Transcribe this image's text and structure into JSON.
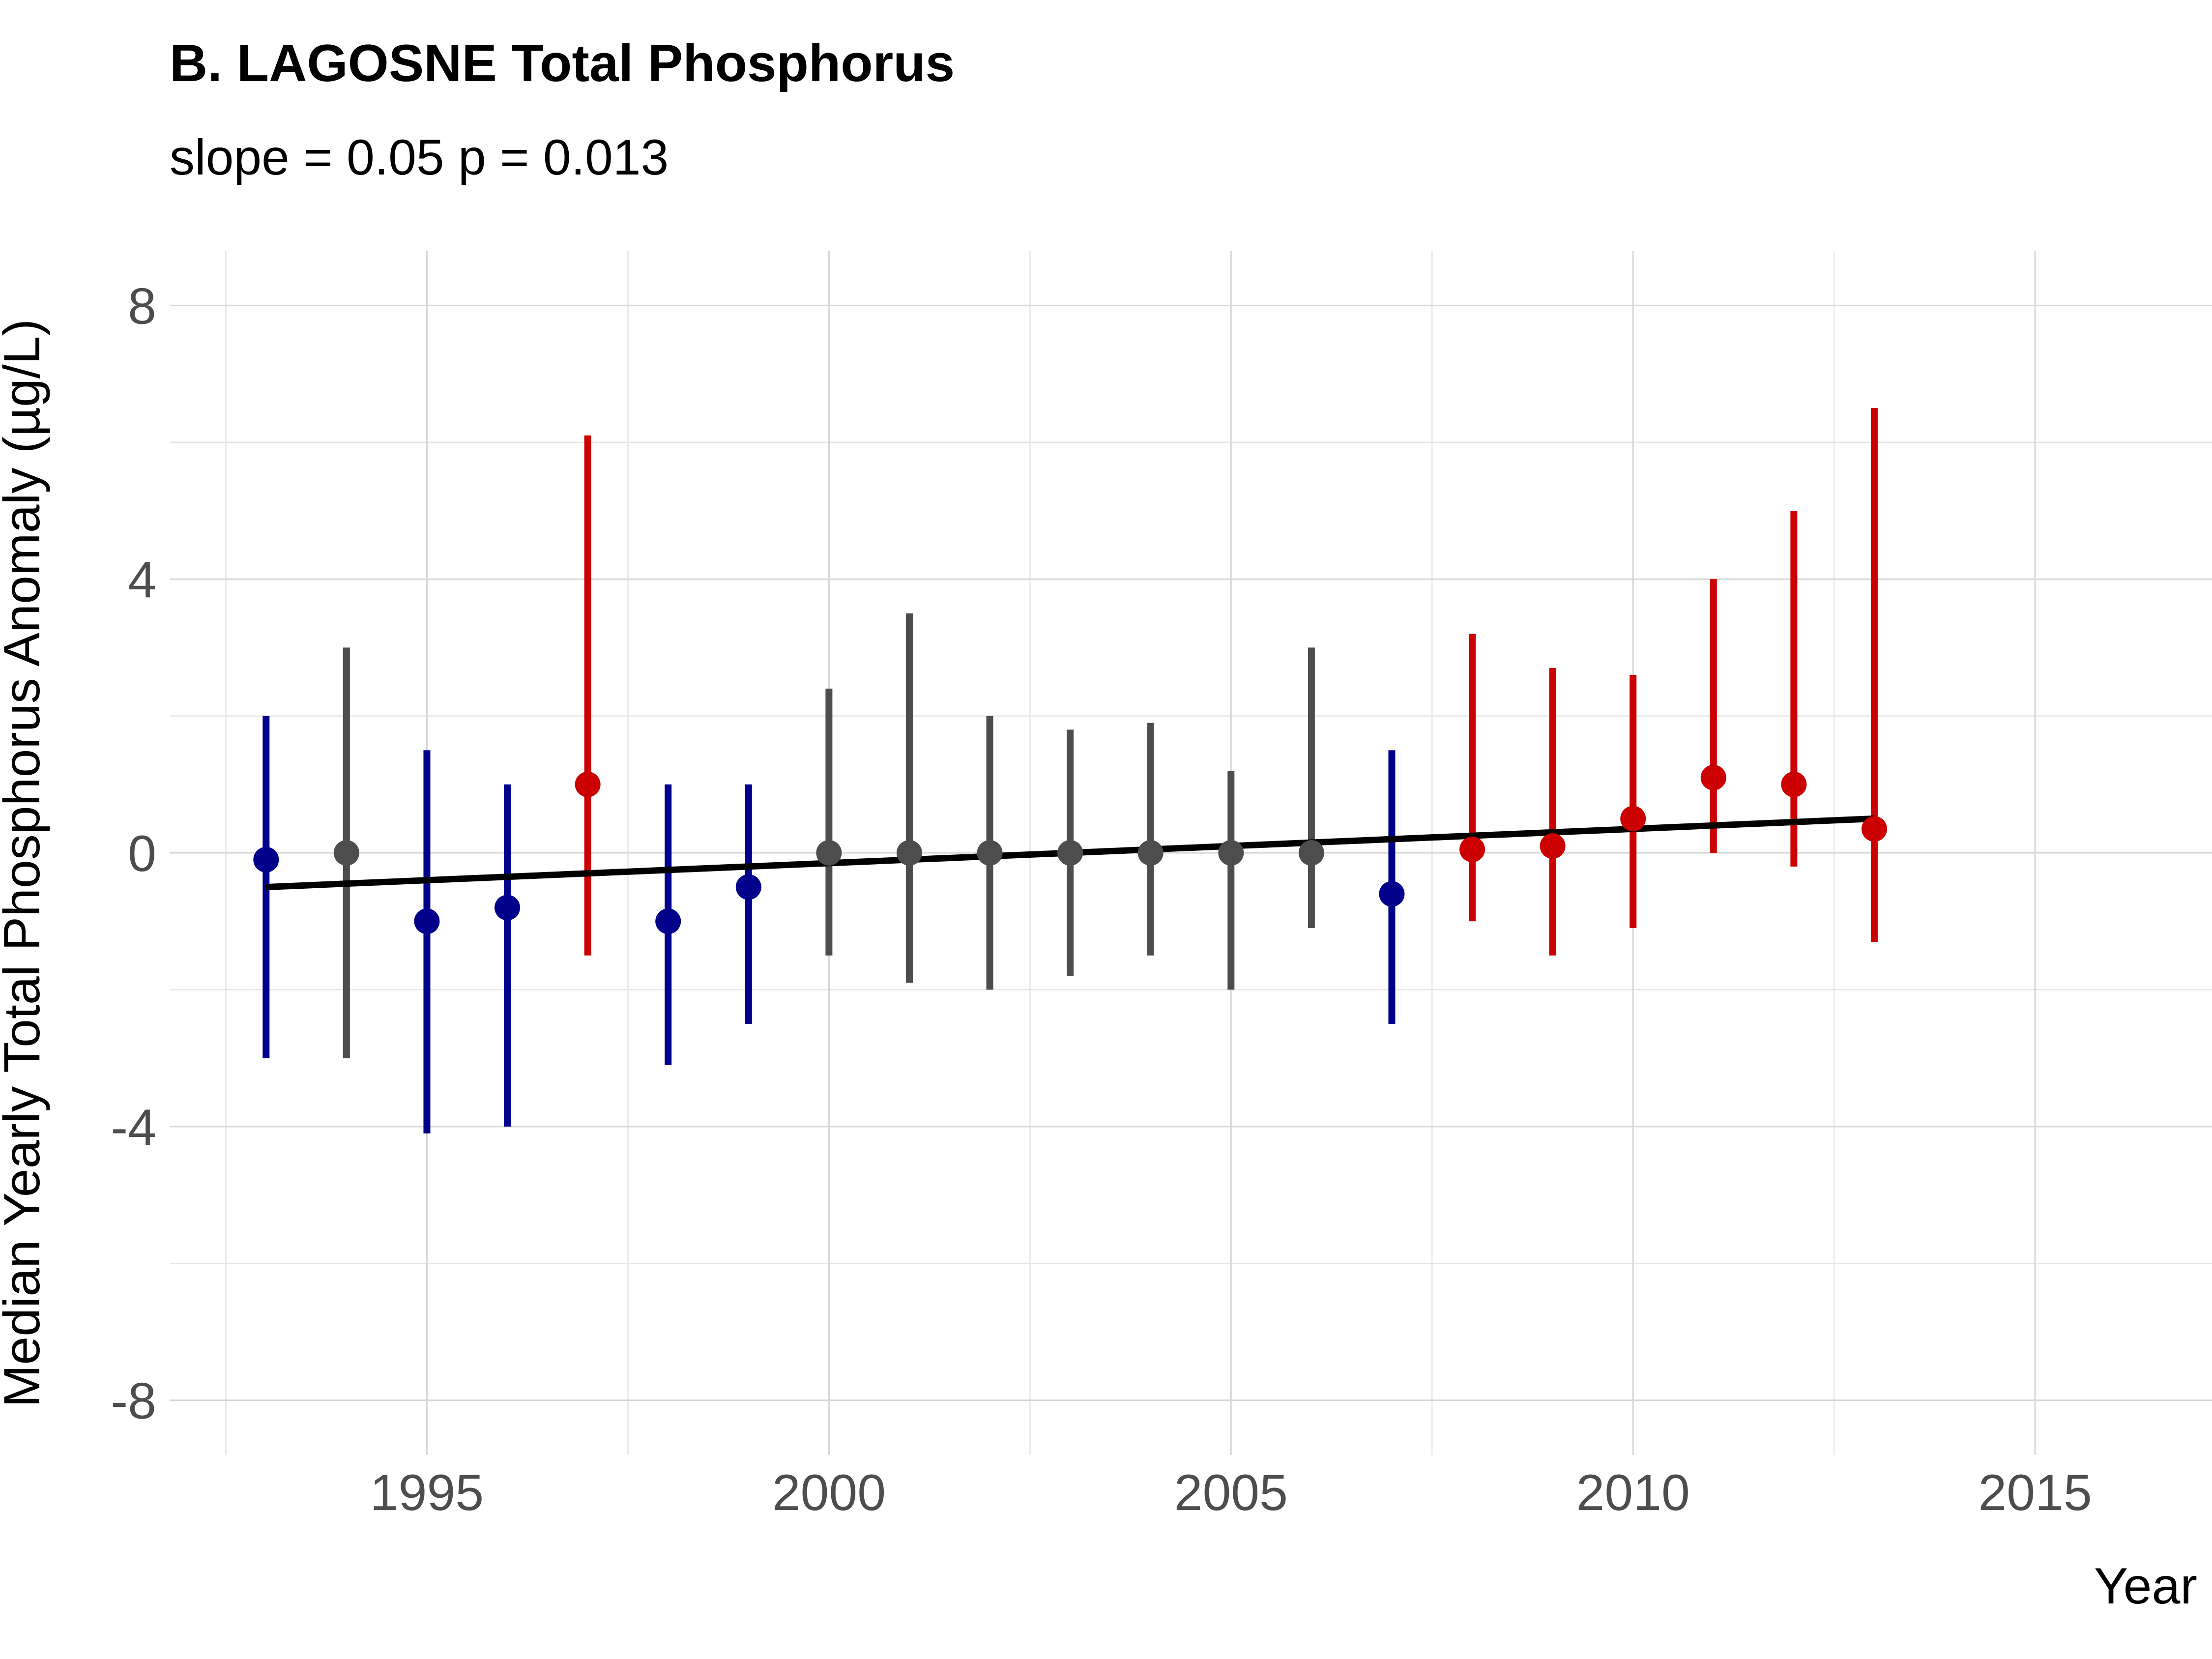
{
  "chart_data": {
    "type": "scatter",
    "title": "B. LAGOSNE Total Phosphorus",
    "subtitle": "slope = 0.05 p = 0.013",
    "xlabel": "Year",
    "ylabel": "Median Yearly Total Phosphorus Anomaly (µg/L)",
    "xlim": [
      1991.8,
      2017.2
    ],
    "ylim": [
      -8.8,
      8.8
    ],
    "x_ticks": [
      1995,
      2000,
      2005,
      2010,
      2015
    ],
    "x_tick_labels": [
      "1995",
      "2000",
      "2005",
      "2010",
      "2015"
    ],
    "y_ticks": [
      -8,
      -4,
      0,
      4,
      8
    ],
    "y_tick_labels": [
      "-8",
      "-4",
      "0",
      "4",
      "8"
    ],
    "grid": true,
    "colors": {
      "below": "#00008b",
      "neutral": "#4d4d4d",
      "above": "#cc0000",
      "trend": "#000000"
    },
    "points": [
      {
        "year": 1993,
        "median": -0.1,
        "low": -3.0,
        "high": 2.0,
        "group": "below"
      },
      {
        "year": 1994,
        "median": 0.0,
        "low": -3.0,
        "high": 3.0,
        "group": "neutral"
      },
      {
        "year": 1995,
        "median": -1.0,
        "low": -4.1,
        "high": 1.5,
        "group": "below"
      },
      {
        "year": 1996,
        "median": -0.8,
        "low": -4.0,
        "high": 1.0,
        "group": "below"
      },
      {
        "year": 1997,
        "median": 1.0,
        "low": -1.5,
        "high": 6.1,
        "group": "above"
      },
      {
        "year": 1998,
        "median": -1.0,
        "low": -3.1,
        "high": 1.0,
        "group": "below"
      },
      {
        "year": 1999,
        "median": -0.5,
        "low": -2.5,
        "high": 1.0,
        "group": "below"
      },
      {
        "year": 2000,
        "median": 0.0,
        "low": -1.5,
        "high": 2.4,
        "group": "neutral"
      },
      {
        "year": 2001,
        "median": 0.0,
        "low": -1.9,
        "high": 3.5,
        "group": "neutral"
      },
      {
        "year": 2002,
        "median": 0.0,
        "low": -2.0,
        "high": 2.0,
        "group": "neutral"
      },
      {
        "year": 2003,
        "median": 0.0,
        "low": -1.8,
        "high": 1.8,
        "group": "neutral"
      },
      {
        "year": 2004,
        "median": 0.0,
        "low": -1.5,
        "high": 1.9,
        "group": "neutral"
      },
      {
        "year": 2005,
        "median": 0.0,
        "low": -2.0,
        "high": 1.2,
        "group": "neutral"
      },
      {
        "year": 2006,
        "median": 0.0,
        "low": -1.1,
        "high": 3.0,
        "group": "neutral"
      },
      {
        "year": 2007,
        "median": -0.6,
        "low": -2.5,
        "high": 1.5,
        "group": "below"
      },
      {
        "year": 2008,
        "median": 0.05,
        "low": -1.0,
        "high": 3.2,
        "group": "above"
      },
      {
        "year": 2009,
        "median": 0.1,
        "low": -1.5,
        "high": 2.7,
        "group": "above"
      },
      {
        "year": 2010,
        "median": 0.5,
        "low": -1.1,
        "high": 2.6,
        "group": "above"
      },
      {
        "year": 2011,
        "median": 1.1,
        "low": 0.0,
        "high": 4.0,
        "group": "above"
      },
      {
        "year": 2012,
        "median": 1.0,
        "low": -0.2,
        "high": 5.0,
        "group": "above"
      },
      {
        "year": 2013,
        "median": 0.35,
        "low": -1.3,
        "high": 6.5,
        "group": "above"
      }
    ],
    "trend_line": {
      "x": [
        1993,
        2013
      ],
      "y": [
        -0.5,
        0.5
      ]
    }
  }
}
